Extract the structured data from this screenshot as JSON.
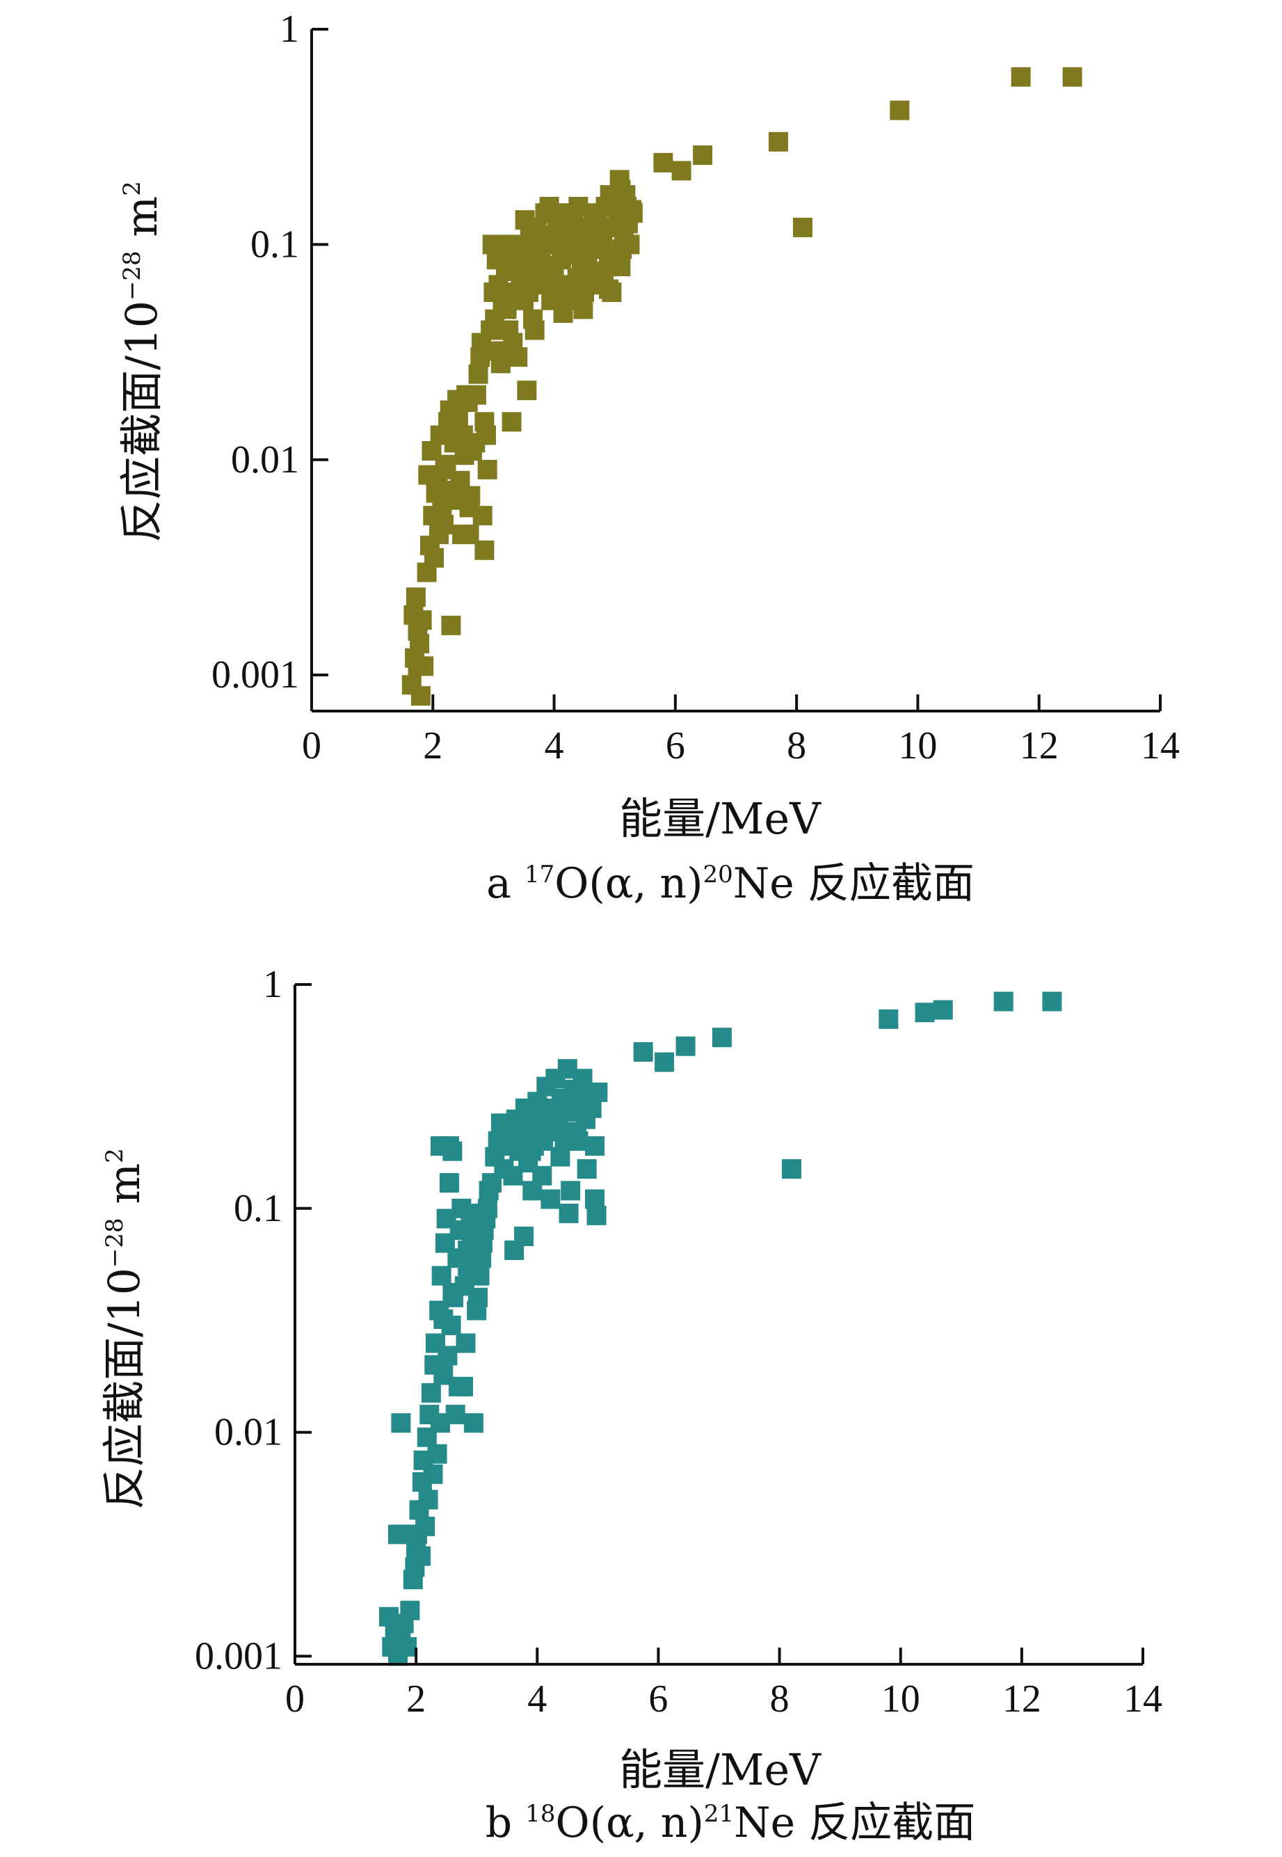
{
  "chart_data": [
    {
      "id": "a",
      "type": "scatter",
      "caption": {
        "letter": "a",
        "mass1": "17",
        "body": "O(α, n)",
        "mass2": "20",
        "tail": "Ne 反应截面"
      },
      "xlabel": "能量/MeV",
      "ylabel": {
        "main": "反应截面/10",
        "exp": "−28",
        "unit": " m",
        "unit_exp": "2"
      },
      "xlim": [
        0,
        14
      ],
      "ylim": [
        0.00068,
        1
      ],
      "yscale": "log",
      "xticks": [
        0,
        2,
        4,
        6,
        8,
        10,
        12,
        14
      ],
      "xtick_labels": [
        "0",
        "2",
        "4",
        "6",
        "8",
        "10",
        "12",
        "14"
      ],
      "yticks": [
        0.001,
        0.01,
        0.1,
        1
      ],
      "ytick_labels": [
        "0.001",
        "0.01",
        "0.1",
        "1"
      ],
      "grid": false,
      "legend": "none",
      "marker_color": "#7f7a1f",
      "series": [
        {
          "x": [
            1.65,
            1.7,
            1.75,
            1.8,
            1.85,
            1.68,
            1.72,
            1.78,
            1.82,
            1.9,
            1.95,
            2.0,
            2.05,
            2.1,
            2.15,
            1.92,
            1.98,
            2.02,
            2.08,
            2.12,
            2.2,
            2.25,
            2.3,
            2.35,
            2.4,
            2.18,
            2.22,
            2.28,
            2.32,
            2.38,
            2.45,
            2.5,
            2.55,
            2.6,
            2.65,
            2.42,
            2.48,
            2.52,
            2.58,
            2.62,
            2.7,
            2.75,
            2.8,
            2.85,
            2.9,
            2.72,
            2.78,
            2.82,
            2.88,
            2.95,
            3.0,
            3.05,
            3.1,
            3.15,
            3.2,
            2.98,
            3.02,
            3.08,
            3.12,
            3.18,
            3.25,
            3.3,
            3.35,
            3.4,
            3.45,
            3.22,
            3.28,
            3.32,
            3.38,
            3.42,
            3.5,
            3.55,
            3.6,
            3.65,
            3.7,
            3.48,
            3.52,
            3.58,
            3.62,
            3.68,
            3.75,
            3.8,
            3.85,
            3.9,
            3.95,
            3.72,
            3.78,
            3.82,
            3.88,
            3.92,
            4.0,
            4.05,
            4.1,
            4.15,
            4.2,
            3.98,
            4.02,
            4.08,
            4.12,
            4.18,
            4.25,
            4.3,
            4.35,
            4.4,
            4.45,
            4.22,
            4.28,
            4.32,
            4.38,
            4.42,
            4.5,
            4.55,
            4.6,
            4.65,
            4.7,
            4.48,
            4.52,
            4.58,
            4.62,
            4.68,
            4.75,
            4.8,
            4.85,
            4.9,
            4.95,
            4.72,
            4.78,
            4.82,
            4.88,
            4.92,
            5.0,
            5.05,
            5.1,
            5.15,
            5.2,
            5.25,
            5.3,
            4.98,
            5.02,
            5.08,
            5.12,
            5.18,
            5.22,
            5.28,
            1.75,
            2.3,
            2.6,
            2.85,
            3.3,
            3.55,
            4.15,
            4.45,
            4.9,
            5.1,
            5.8,
            6.1,
            6.45,
            7.7,
            8.1,
            9.7,
            11.7,
            12.55
          ],
          "y": [
            0.0009,
            0.0012,
            0.0016,
            0.0008,
            0.0011,
            0.0019,
            0.0023,
            0.0014,
            0.0018,
            0.003,
            0.004,
            0.0055,
            0.007,
            0.0045,
            0.006,
            0.0085,
            0.011,
            0.0035,
            0.0075,
            0.013,
            0.009,
            0.015,
            0.0065,
            0.012,
            0.019,
            0.005,
            0.0095,
            0.017,
            0.0072,
            0.014,
            0.008,
            0.013,
            0.02,
            0.006,
            0.011,
            0.016,
            0.0045,
            0.0105,
            0.0185,
            0.0068,
            0.012,
            0.025,
            0.035,
            0.015,
            0.009,
            0.02,
            0.03,
            0.0055,
            0.013,
            0.04,
            0.06,
            0.085,
            0.032,
            0.05,
            0.075,
            0.1,
            0.045,
            0.065,
            0.028,
            0.09,
            0.04,
            0.055,
            0.08,
            0.03,
            0.07,
            0.05,
            0.1,
            0.035,
            0.06,
            0.085,
            0.055,
            0.08,
            0.11,
            0.045,
            0.07,
            0.095,
            0.13,
            0.06,
            0.085,
            0.04,
            0.07,
            0.1,
            0.14,
            0.075,
            0.055,
            0.12,
            0.09,
            0.065,
            0.11,
            0.15,
            0.08,
            0.12,
            0.06,
            0.095,
            0.14,
            0.07,
            0.1,
            0.13,
            0.085,
            0.11,
            0.065,
            0.09,
            0.12,
            0.15,
            0.08,
            0.055,
            0.1,
            0.13,
            0.07,
            0.095,
            0.06,
            0.085,
            0.11,
            0.14,
            0.075,
            0.05,
            0.09,
            0.12,
            0.065,
            0.1,
            0.075,
            0.11,
            0.15,
            0.085,
            0.06,
            0.13,
            0.095,
            0.07,
            0.12,
            0.17,
            0.09,
            0.13,
            0.18,
            0.11,
            0.15,
            0.1,
            0.14,
            0.16,
            0.12,
            0.2,
            0.095,
            0.17,
            0.125,
            0.145,
            0.0011,
            0.0017,
            0.0045,
            0.0038,
            0.015,
            0.021,
            0.048,
            0.058,
            0.062,
            0.079,
            0.24,
            0.22,
            0.26,
            0.3,
            0.12,
            0.42,
            0.6,
            0.6
          ]
        }
      ]
    },
    {
      "id": "b",
      "type": "scatter",
      "caption": {
        "letter": "b",
        "mass1": "18",
        "body": "O(α, n)",
        "mass2": "21",
        "tail": "Ne 反应截面"
      },
      "xlabel": "能量/MeV",
      "ylabel": {
        "main": "反应截面/10",
        "exp": "−28",
        "unit": " m",
        "unit_exp": "2"
      },
      "xlim": [
        0,
        14
      ],
      "ylim": [
        0.00092,
        1
      ],
      "yscale": "log",
      "xticks": [
        0,
        2,
        4,
        6,
        8,
        10,
        12,
        14
      ],
      "xtick_labels": [
        "0",
        "2",
        "4",
        "6",
        "8",
        "10",
        "12",
        "14"
      ],
      "yticks": [
        0.001,
        0.01,
        0.1,
        1
      ],
      "ytick_labels": [
        "0.001",
        "0.01",
        "0.1",
        "1"
      ],
      "grid": false,
      "legend": "none",
      "marker_color": "#248a8a",
      "series": [
        {
          "x": [
            1.55,
            1.6,
            1.65,
            1.7,
            1.75,
            1.8,
            1.85,
            1.9,
            1.95,
            2.0,
            2.05,
            2.1,
            2.15,
            2.2,
            1.98,
            2.02,
            2.08,
            2.12,
            2.18,
            2.22,
            2.25,
            2.3,
            2.35,
            2.4,
            2.45,
            2.28,
            2.32,
            2.38,
            2.42,
            2.48,
            2.5,
            2.55,
            2.6,
            2.65,
            2.7,
            2.52,
            2.58,
            2.62,
            2.68,
            2.72,
            2.75,
            2.8,
            2.85,
            2.9,
            2.95,
            2.78,
            2.82,
            2.88,
            2.92,
            2.98,
            3.0,
            3.05,
            3.1,
            3.15,
            3.2,
            3.02,
            3.08,
            3.12,
            3.18,
            3.25,
            3.3,
            3.35,
            3.4,
            3.45,
            3.5,
            3.55,
            3.6,
            3.65,
            3.7,
            3.75,
            3.8,
            3.85,
            3.9,
            3.95,
            4.0,
            4.05,
            4.1,
            4.15,
            4.2,
            4.25,
            4.3,
            4.35,
            4.4,
            4.45,
            4.5,
            4.55,
            4.6,
            4.65,
            4.7,
            4.75,
            4.8,
            4.85,
            4.9,
            4.95,
            5.0,
            3.62,
            3.78,
            3.92,
            4.08,
            4.22,
            4.38,
            4.52,
            4.68,
            4.82,
            4.98,
            1.7,
            1.75,
            2.45,
            2.6,
            3.9,
            4.55,
            4.95,
            2.4,
            2.55,
            2.85,
            5.75,
            6.1,
            6.45,
            7.05,
            8.2,
            9.8,
            10.4,
            10.7,
            11.7,
            12.5
          ],
          "y": [
            0.0015,
            0.0011,
            0.0013,
            0.001,
            0.0012,
            0.0014,
            0.0011,
            0.0016,
            0.0022,
            0.003,
            0.0045,
            0.006,
            0.0038,
            0.005,
            0.0025,
            0.0035,
            0.0028,
            0.0075,
            0.0095,
            0.012,
            0.015,
            0.02,
            0.008,
            0.011,
            0.018,
            0.0065,
            0.025,
            0.035,
            0.05,
            0.07,
            0.09,
            0.13,
            0.18,
            0.012,
            0.016,
            0.022,
            0.03,
            0.04,
            0.06,
            0.08,
            0.1,
            0.045,
            0.065,
            0.085,
            0.011,
            0.016,
            0.025,
            0.055,
            0.075,
            0.095,
            0.035,
            0.05,
            0.07,
            0.09,
            0.12,
            0.04,
            0.06,
            0.08,
            0.1,
            0.13,
            0.17,
            0.2,
            0.24,
            0.15,
            0.19,
            0.22,
            0.14,
            0.25,
            0.18,
            0.21,
            0.28,
            0.16,
            0.23,
            0.19,
            0.3,
            0.26,
            0.2,
            0.35,
            0.22,
            0.28,
            0.38,
            0.24,
            0.31,
            0.2,
            0.42,
            0.27,
            0.34,
            0.22,
            0.3,
            0.38,
            0.25,
            0.32,
            0.28,
            0.19,
            0.33,
            0.065,
            0.075,
            0.12,
            0.14,
            0.11,
            0.17,
            0.095,
            0.2,
            0.15,
            0.093,
            0.0035,
            0.011,
            0.032,
            0.042,
            0.18,
            0.12,
            0.11,
            0.19,
            0.19,
            0.055,
            0.5,
            0.45,
            0.53,
            0.58,
            0.15,
            0.7,
            0.75,
            0.77,
            0.84,
            0.84
          ]
        }
      ]
    }
  ]
}
